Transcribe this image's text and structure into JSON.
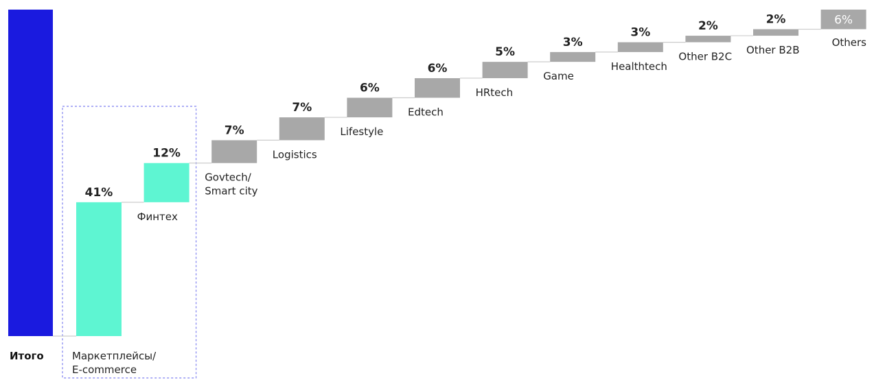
{
  "chart_data": {
    "type": "bar",
    "subtype": "waterfall",
    "total_label": "Итого",
    "categories": [
      "Маркетплейсы/\nE-commerce",
      "Финтех",
      "Govtech/\nSmart city",
      "Logistics",
      "Lifestyle",
      "Edtech",
      "HRtech",
      "Game",
      "Healthtech",
      "Other B2C",
      "Other B2B",
      "Others"
    ],
    "values": [
      41,
      12,
      7,
      7,
      6,
      6,
      5,
      3,
      3,
      2,
      2,
      6
    ],
    "value_labels": [
      "41%",
      "12%",
      "7%",
      "7%",
      "6%",
      "6%",
      "5%",
      "3%",
      "3%",
      "2%",
      "2%",
      "6%"
    ],
    "highlighted_categories": [
      "Маркетплейсы/\nE-commerce",
      "Финтех"
    ],
    "total_value": 100,
    "ylim": [
      0,
      100
    ],
    "grid": false,
    "legend": "none",
    "colors": {
      "total": "#1a1adf",
      "highlight": "#5ef5d2",
      "other": "#a8a8a8",
      "connector": "#cccccc",
      "highlight_box": "#7d7ff0",
      "others_label": "#ffffff"
    }
  }
}
